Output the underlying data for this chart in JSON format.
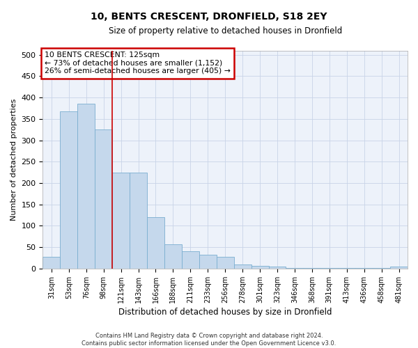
{
  "title": "10, BENTS CRESCENT, DRONFIELD, S18 2EY",
  "subtitle": "Size of property relative to detached houses in Dronfield",
  "xlabel": "Distribution of detached houses by size in Dronfield",
  "ylabel": "Number of detached properties",
  "footer_line1": "Contains HM Land Registry data © Crown copyright and database right 2024.",
  "footer_line2": "Contains public sector information licensed under the Open Government Licence v3.0.",
  "bar_color": "#c5d8ec",
  "bar_edge_color": "#7aaed0",
  "grid_color": "#c8d4e8",
  "background_color": "#edf2fa",
  "vline_color": "#cc0000",
  "vline_x_index": 4,
  "annotation_text": "10 BENTS CRESCENT: 125sqm\n← 73% of detached houses are smaller (1,152)\n26% of semi-detached houses are larger (405) →",
  "annotation_box_color": "#ffffff",
  "annotation_box_edge": "#cc0000",
  "categories": [
    "31sqm",
    "53sqm",
    "76sqm",
    "98sqm",
    "121sqm",
    "143sqm",
    "166sqm",
    "188sqm",
    "211sqm",
    "233sqm",
    "256sqm",
    "278sqm",
    "301sqm",
    "323sqm",
    "346sqm",
    "368sqm",
    "391sqm",
    "413sqm",
    "436sqm",
    "458sqm",
    "481sqm"
  ],
  "values": [
    28,
    368,
    385,
    325,
    225,
    225,
    120,
    57,
    40,
    33,
    28,
    10,
    7,
    5,
    2,
    1,
    1,
    1,
    1,
    1,
    5
  ],
  "ylim": [
    0,
    510
  ],
  "yticks": [
    0,
    50,
    100,
    150,
    200,
    250,
    300,
    350,
    400,
    450,
    500
  ],
  "figsize": [
    6.0,
    5.0
  ],
  "dpi": 100
}
